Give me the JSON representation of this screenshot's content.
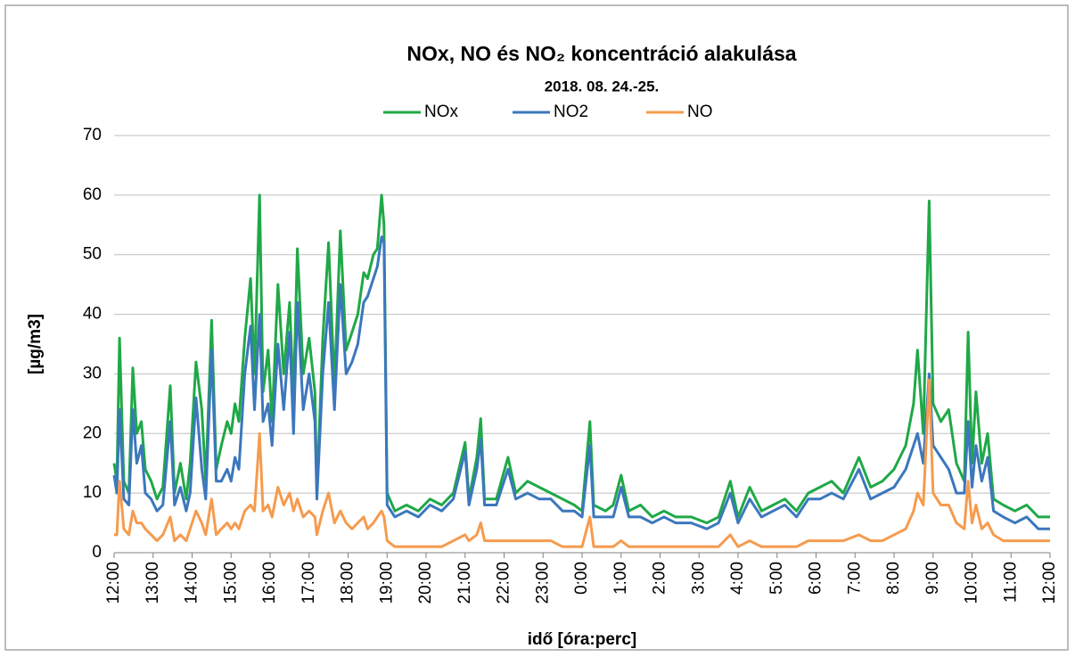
{
  "chart_data": {
    "type": "line",
    "title": "NOx, NO és NO₂ koncentráció alakulása",
    "subtitle": "2018. 08. 24.-25.",
    "x_label": "idő [óra:perc]",
    "y_label": "[µg/m3]",
    "grid": true,
    "legend": "top",
    "xlim": [
      0,
      24
    ],
    "xticks": [
      {
        "value": 0,
        "label": "12:00"
      },
      {
        "value": 1,
        "label": "13:00"
      },
      {
        "value": 2,
        "label": "14:00"
      },
      {
        "value": 3,
        "label": "15:00"
      },
      {
        "value": 4,
        "label": "16:00"
      },
      {
        "value": 5,
        "label": "17:00"
      },
      {
        "value": 6,
        "label": "18:00"
      },
      {
        "value": 7,
        "label": "19:00"
      },
      {
        "value": 8,
        "label": "20:00"
      },
      {
        "value": 9,
        "label": "21:00"
      },
      {
        "value": 10,
        "label": "22:00"
      },
      {
        "value": 11,
        "label": "23:00"
      },
      {
        "value": 12,
        "label": "0:00"
      },
      {
        "value": 13,
        "label": "1:00"
      },
      {
        "value": 14,
        "label": "2:00"
      },
      {
        "value": 15,
        "label": "3:00"
      },
      {
        "value": 16,
        "label": "4:00"
      },
      {
        "value": 17,
        "label": "5:00"
      },
      {
        "value": 18,
        "label": "6:00"
      },
      {
        "value": 19,
        "label": "7:00"
      },
      {
        "value": 20,
        "label": "8:00"
      },
      {
        "value": 21,
        "label": "9:00"
      },
      {
        "value": 22,
        "label": "10:00"
      },
      {
        "value": 23,
        "label": "11:00"
      },
      {
        "value": 24,
        "label": "12:00"
      }
    ],
    "ylim": [
      0,
      70
    ],
    "yticks": [
      0,
      10,
      20,
      30,
      40,
      50,
      60,
      70
    ],
    "x": [
      0,
      0.07,
      0.14,
      0.25,
      0.38,
      0.48,
      0.58,
      0.7,
      0.8,
      0.95,
      1.1,
      1.25,
      1.44,
      1.55,
      1.7,
      1.85,
      1.95,
      2.1,
      2.25,
      2.35,
      2.5,
      2.62,
      2.75,
      2.9,
      3.0,
      3.1,
      3.2,
      3.35,
      3.5,
      3.6,
      3.73,
      3.82,
      3.95,
      4.05,
      4.2,
      4.35,
      4.5,
      4.6,
      4.7,
      4.85,
      5.0,
      5.15,
      5.2,
      5.35,
      5.5,
      5.65,
      5.8,
      5.95,
      6.1,
      6.25,
      6.4,
      6.5,
      6.65,
      6.75,
      6.86,
      6.92,
      7.0,
      7.2,
      7.5,
      7.8,
      8.1,
      8.4,
      8.7,
      9.0,
      9.1,
      9.3,
      9.4,
      9.5,
      9.8,
      10.1,
      10.3,
      10.6,
      10.9,
      11.2,
      11.5,
      11.8,
      12.0,
      12.2,
      12.3,
      12.6,
      12.8,
      13.0,
      13.2,
      13.5,
      13.8,
      14.1,
      14.4,
      14.8,
      15.2,
      15.5,
      15.8,
      16.0,
      16.3,
      16.6,
      16.9,
      17.2,
      17.5,
      17.8,
      18.1,
      18.4,
      18.7,
      19.1,
      19.4,
      19.7,
      20.0,
      20.3,
      20.5,
      20.6,
      20.75,
      20.9,
      21.0,
      21.2,
      21.4,
      21.6,
      21.8,
      21.9,
      22.0,
      22.1,
      22.25,
      22.4,
      22.55,
      22.8,
      23.1,
      23.4,
      23.7,
      24.0
    ],
    "series": [
      {
        "name": "NOx",
        "color": "#1fa847",
        "values": [
          15,
          12,
          36,
          12,
          10,
          31,
          20,
          22,
          14,
          12,
          9,
          11,
          28,
          10,
          15,
          9,
          15,
          32,
          24,
          12,
          39,
          14,
          18,
          22,
          20,
          25,
          22,
          36,
          46,
          30,
          60,
          27,
          34,
          22,
          45,
          30,
          42,
          26,
          51,
          30,
          36,
          27,
          10,
          36,
          52,
          28,
          54,
          34,
          37,
          40,
          47,
          46,
          50,
          51,
          60,
          55,
          10,
          7,
          8,
          7,
          9,
          8,
          10,
          18.5,
          9,
          16,
          22.5,
          9,
          9,
          16,
          10,
          12,
          11,
          10,
          9,
          8,
          7,
          22,
          8,
          7,
          8,
          13,
          7,
          8,
          6,
          7,
          6,
          6,
          5,
          6,
          12,
          6,
          11,
          7,
          8,
          9,
          7,
          10,
          11,
          12,
          10,
          16,
          11,
          12,
          14,
          18,
          25,
          34,
          20,
          59,
          25,
          22,
          24,
          15,
          12,
          37,
          15,
          27,
          15,
          20,
          9,
          8,
          7,
          8,
          6,
          6
        ]
      },
      {
        "name": "NO2",
        "color": "#3b77bd",
        "values": [
          13,
          10,
          24,
          9,
          8,
          24,
          15,
          18,
          10,
          9,
          7,
          8,
          22,
          8,
          11,
          7,
          10,
          26,
          14,
          9,
          34,
          12,
          12,
          14,
          12,
          16,
          14,
          30,
          38,
          24,
          40,
          22,
          25,
          18,
          35,
          24,
          37,
          20,
          42,
          24,
          30,
          22,
          9,
          30,
          42,
          24,
          45,
          30,
          32,
          35,
          42,
          43,
          46,
          48,
          53,
          52,
          8,
          6,
          7,
          6,
          8,
          7,
          9,
          17,
          8,
          14,
          19,
          8,
          8,
          14,
          9,
          10,
          9,
          9,
          7,
          7,
          6,
          18,
          6,
          6,
          6,
          11,
          6,
          6,
          5,
          6,
          5,
          5,
          4,
          5,
          10,
          5,
          9,
          6,
          7,
          8,
          6,
          9,
          9,
          10,
          9,
          14,
          9,
          10,
          11,
          14,
          18,
          20,
          15,
          30,
          18,
          16,
          14,
          10,
          10,
          22,
          11,
          18,
          12,
          16,
          7,
          6,
          5,
          6,
          4,
          4
        ]
      },
      {
        "name": "NO",
        "color": "#f59b4e",
        "values": [
          3,
          3,
          12,
          4,
          3,
          7,
          5,
          5,
          4,
          3,
          2,
          3,
          6,
          2,
          3,
          2,
          4,
          7,
          5,
          3,
          9,
          3,
          4,
          5,
          4,
          5,
          4,
          7,
          8,
          7,
          20,
          7,
          8,
          6,
          11,
          8,
          10,
          7,
          9,
          6,
          7,
          6,
          3,
          7,
          10,
          5,
          7,
          5,
          4,
          5,
          6,
          4,
          5,
          6,
          7,
          6,
          2,
          1,
          1,
          1,
          1,
          1,
          2,
          3,
          2,
          3,
          5,
          2,
          2,
          2,
          2,
          2,
          2,
          2,
          1,
          1,
          1,
          6,
          1,
          1,
          1,
          2,
          1,
          1,
          1,
          1,
          1,
          1,
          1,
          1,
          3,
          1,
          2,
          1,
          1,
          1,
          1,
          2,
          2,
          2,
          2,
          3,
          2,
          2,
          3,
          4,
          7,
          10,
          8,
          29,
          10,
          8,
          8,
          5,
          4,
          12,
          5,
          8,
          4,
          5,
          3,
          2,
          2,
          2,
          2,
          2
        ]
      }
    ]
  }
}
